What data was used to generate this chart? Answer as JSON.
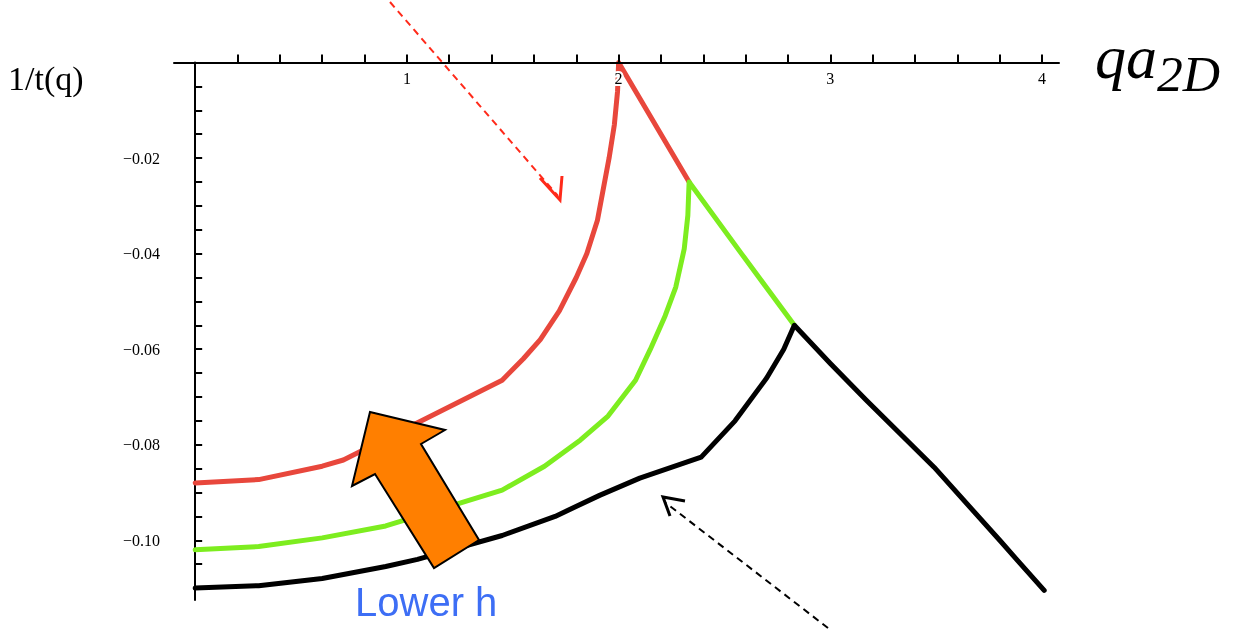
{
  "chart_data": {
    "type": "line",
    "xlabel": "qa$_{2D}$",
    "ylabel": "1/t(q)",
    "annotations": [
      "Lower h"
    ],
    "xlim": [
      -0.1,
      4.08
    ],
    "ylim": [
      -0.1125,
      0
    ],
    "xticks": [
      {
        "value": 0.2,
        "label": null
      },
      {
        "value": 0.4,
        "label": null
      },
      {
        "value": 0.6,
        "label": null
      },
      {
        "value": 0.8,
        "label": null
      },
      1,
      {
        "value": 1.2,
        "label": null
      },
      {
        "value": 1.4,
        "label": null
      },
      {
        "value": 1.6,
        "label": null
      },
      {
        "value": 1.8,
        "label": null
      },
      2,
      {
        "value": 2.2,
        "label": null
      },
      {
        "value": 2.4,
        "label": null
      },
      {
        "value": 2.6,
        "label": null
      },
      {
        "value": 2.8,
        "label": null
      },
      3,
      {
        "value": 3.2,
        "label": null
      },
      {
        "value": 3.4,
        "label": null
      },
      {
        "value": 3.6,
        "label": null
      },
      {
        "value": 3.8,
        "label": null
      },
      4
    ],
    "yticks": [
      {
        "value": -0.005,
        "label": null
      },
      {
        "value": -0.01,
        "label": null
      },
      {
        "value": -0.015,
        "label": null
      },
      {
        "value": -0.02,
        "label": "−0.02"
      },
      {
        "value": -0.025,
        "label": null
      },
      {
        "value": -0.03,
        "label": null
      },
      {
        "value": -0.035,
        "label": null
      },
      {
        "value": -0.04,
        "label": "−0.04"
      },
      {
        "value": -0.045,
        "label": null
      },
      {
        "value": -0.05,
        "label": null
      },
      {
        "value": -0.055,
        "label": null
      },
      {
        "value": -0.06,
        "label": "−0.06"
      },
      {
        "value": -0.065,
        "label": null
      },
      {
        "value": -0.07,
        "label": null
      },
      {
        "value": -0.075,
        "label": null
      },
      {
        "value": -0.08,
        "label": "−0.08"
      },
      {
        "value": -0.085,
        "label": null
      },
      {
        "value": -0.09,
        "label": null
      },
      {
        "value": -0.095,
        "label": null
      },
      {
        "value": -0.1,
        "label": "−0.10"
      },
      {
        "value": -0.105,
        "label": null
      },
      {
        "value": -0.11,
        "label": null
      }
    ],
    "grid": false,
    "marker": "none",
    "line_style": "solid",
    "series": [
      {
        "color": "#e8473c",
        "x": [
          0,
          0.3,
          0.6,
          0.7,
          1.45,
          1.55,
          1.63,
          1.72,
          1.8,
          1.85,
          1.9,
          1.955,
          1.98,
          1.995,
          2,
          2.333
        ],
        "values": [
          -0.088,
          -0.0873,
          -0.0845,
          -0.0832,
          -0.0665,
          -0.062,
          -0.058,
          -0.052,
          -0.045,
          -0.04,
          -0.033,
          -0.02,
          -0.013,
          -0.006,
          0,
          -0.025
        ]
      },
      {
        "color": "#7ded1f",
        "x": [
          0,
          0.3,
          0.6,
          0.9,
          1.45,
          1.65,
          1.82,
          1.95,
          2.08,
          2.15,
          2.22,
          2.27,
          2.31,
          2.327,
          2.333,
          2.58,
          2.83
        ],
        "values": [
          -0.102,
          -0.1013,
          -0.0995,
          -0.097,
          -0.0895,
          -0.0845,
          -0.079,
          -0.074,
          -0.0665,
          -0.06,
          -0.053,
          -0.047,
          -0.039,
          -0.032,
          -0.025,
          -0.04,
          -0.055
        ]
      },
      {
        "color": "#000000",
        "x": [
          0,
          0.3,
          0.6,
          0.9,
          1.05,
          1.45,
          1.7,
          1.91,
          2.1,
          2.39,
          2.55,
          2.7,
          2.78,
          2.83,
          3.0,
          3.17,
          3.49,
          3.8,
          4.01
        ],
        "values": [
          -0.11,
          -0.1095,
          -0.108,
          -0.1055,
          -0.104,
          -0.099,
          -0.095,
          -0.0906,
          -0.087,
          -0.0826,
          -0.075,
          -0.066,
          -0.06,
          -0.055,
          -0.063,
          -0.0707,
          -0.0847,
          -0.1,
          -0.1105
        ]
      }
    ]
  }
}
